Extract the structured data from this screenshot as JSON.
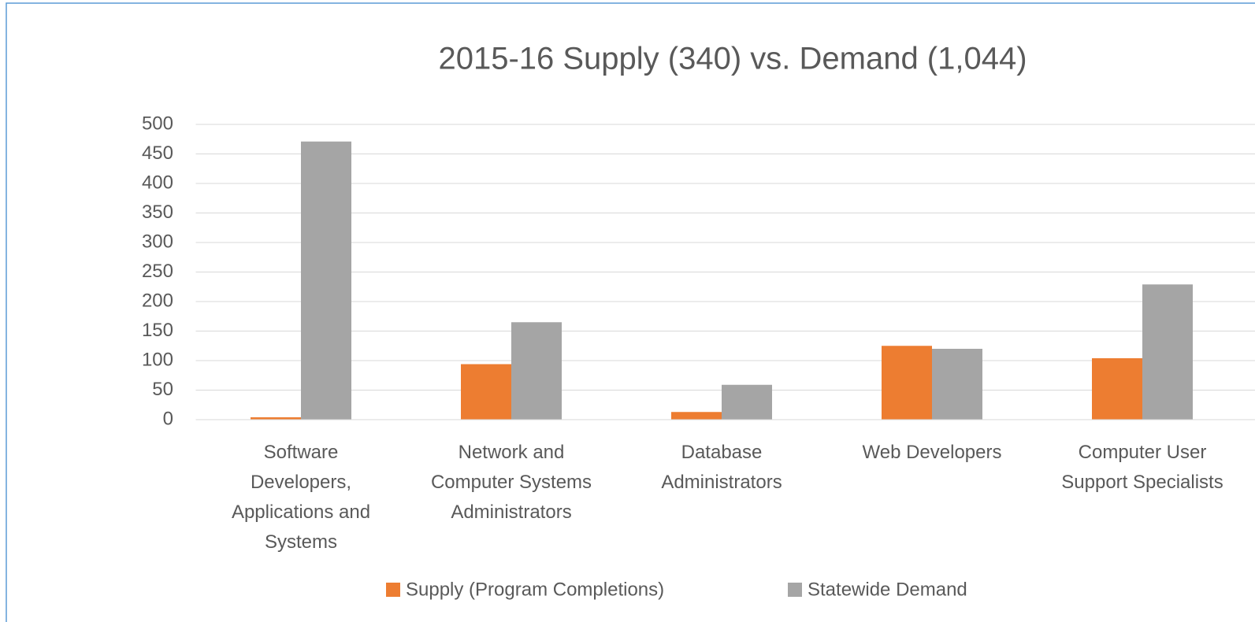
{
  "chart_data": {
    "type": "bar",
    "title": "2015-16 Supply (340) vs. Demand (1,044)",
    "categories": [
      "Software Developers, Applications and Systems",
      "Network and Computer Systems Administrators",
      "Database Administrators",
      "Web Developers",
      "Computer User Support Specialists"
    ],
    "series": [
      {
        "name": "Supply (Program Completions)",
        "color": "#ed7d31",
        "values": [
          4,
          94,
          13,
          125,
          104
        ]
      },
      {
        "name": "Statewide Demand",
        "color": "#a5a5a5",
        "values": [
          471,
          165,
          59,
          120,
          229
        ]
      }
    ],
    "ylim": [
      0,
      500
    ],
    "yticks": [
      0,
      50,
      100,
      150,
      200,
      250,
      300,
      350,
      400,
      450,
      500
    ],
    "grid": true,
    "legend": "bottom"
  }
}
